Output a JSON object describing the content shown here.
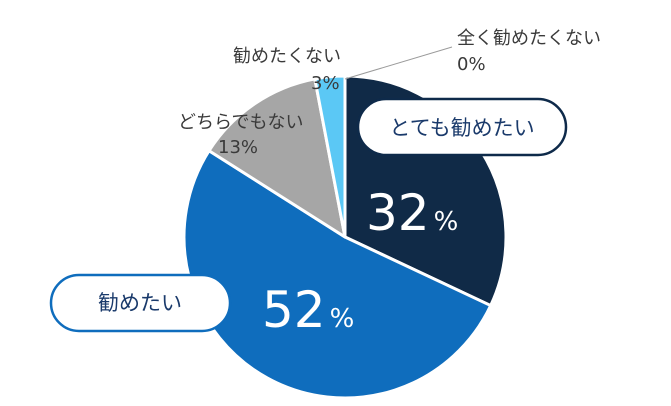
{
  "chart_data": {
    "type": "pie",
    "title": "",
    "slices": [
      {
        "label": "とても勧めたい",
        "value": 32,
        "color": "#102a47",
        "pct_text": "32",
        "sign": "%"
      },
      {
        "label": "勧めたい",
        "value": 52,
        "color": "#0f6dbd",
        "pct_text": "52",
        "sign": "%"
      },
      {
        "label": "どちらでもない",
        "value": 13,
        "color": "#a6a6a6",
        "pct_text": "13%"
      },
      {
        "label": "勧めたくない",
        "value": 3,
        "color": "#5bc8f5",
        "pct_text": "3%"
      },
      {
        "label": "全く勧めたくない",
        "value": 0,
        "color": "#1f3864",
        "pct_text": "0%"
      }
    ]
  }
}
